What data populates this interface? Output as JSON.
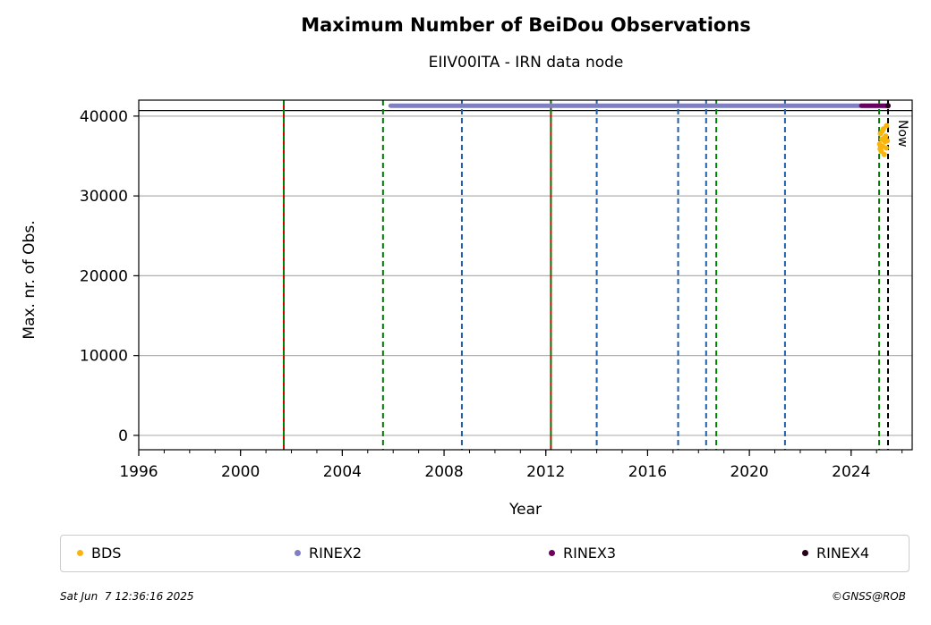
{
  "chart_data": {
    "type": "scatter",
    "title": "Maximum Number of BeiDou Observations",
    "subtitle": "EIIV00ITA - IRN data node",
    "xlabel": "Year",
    "ylabel": "Max. nr. of Obs.",
    "xlim": [
      1996,
      2026.4
    ],
    "ylim": [
      -1800,
      42000
    ],
    "xticks": [
      1996,
      2000,
      2004,
      2008,
      2012,
      2016,
      2020,
      2024
    ],
    "xtick_labels": [
      "1996",
      "2000",
      "2004",
      "2008",
      "2012",
      "2016",
      "2020",
      "2024"
    ],
    "yticks": [
      0,
      10000,
      20000,
      30000,
      40000
    ],
    "ytick_labels": [
      "0",
      "10000",
      "20000",
      "30000",
      "40000"
    ],
    "grid": "y",
    "reference_line": 40700,
    "series": [
      {
        "name": "BDS",
        "color": "#fbb50a",
        "x": [
          2025.12,
          2025.15,
          2025.18,
          2025.21,
          2025.24,
          2025.27,
          2025.3,
          2025.33,
          2025.36,
          2025.39,
          2025.42,
          2025.14,
          2025.22,
          2025.31,
          2025.38
        ],
        "y": [
          36500,
          37800,
          35600,
          37100,
          36200,
          38400,
          35200,
          36800,
          37500,
          38800,
          36900,
          35900,
          38100,
          37300,
          36000
        ]
      },
      {
        "name": "RINEX2",
        "color": "#7f7fc1",
        "x_range": [
          2005.9,
          2025.4
        ],
        "y": 41300
      },
      {
        "name": "RINEX3",
        "color": "#6a0060",
        "x_range": [
          2024.4,
          2025.45
        ],
        "y": 41300
      },
      {
        "name": "RINEX4",
        "color": "#2a001a",
        "x": [
          2025.45
        ],
        "y": [
          41300
        ]
      }
    ],
    "vlines": [
      {
        "x": 2001.7,
        "style": "solid",
        "color": "#d00000"
      },
      {
        "x": 2001.7,
        "style": "dashed",
        "color": "#008000"
      },
      {
        "x": 2005.6,
        "style": "dashed",
        "color": "#008000"
      },
      {
        "x": 2008.7,
        "style": "dashed",
        "color": "#1f5fa8"
      },
      {
        "x": 2012.2,
        "style": "solid",
        "color": "#d00000"
      },
      {
        "x": 2012.2,
        "style": "dashed",
        "color": "#008000"
      },
      {
        "x": 2014.0,
        "style": "dashed",
        "color": "#1f5fa8"
      },
      {
        "x": 2017.2,
        "style": "dashed",
        "color": "#1f5fa8"
      },
      {
        "x": 2018.3,
        "style": "dashed",
        "color": "#1f5fa8"
      },
      {
        "x": 2018.7,
        "style": "dashed",
        "color": "#008000"
      },
      {
        "x": 2021.4,
        "style": "dashed",
        "color": "#1f5fa8"
      },
      {
        "x": 2025.1,
        "style": "dashed",
        "color": "#008000"
      },
      {
        "x": 2025.45,
        "style": "dashed",
        "color": "#000000"
      }
    ],
    "now_label": "Now",
    "legend": "bottom"
  },
  "footer": {
    "date": "Sat Jun  7 12:36:16 2025",
    "credit": "©GNSS@ROB"
  }
}
